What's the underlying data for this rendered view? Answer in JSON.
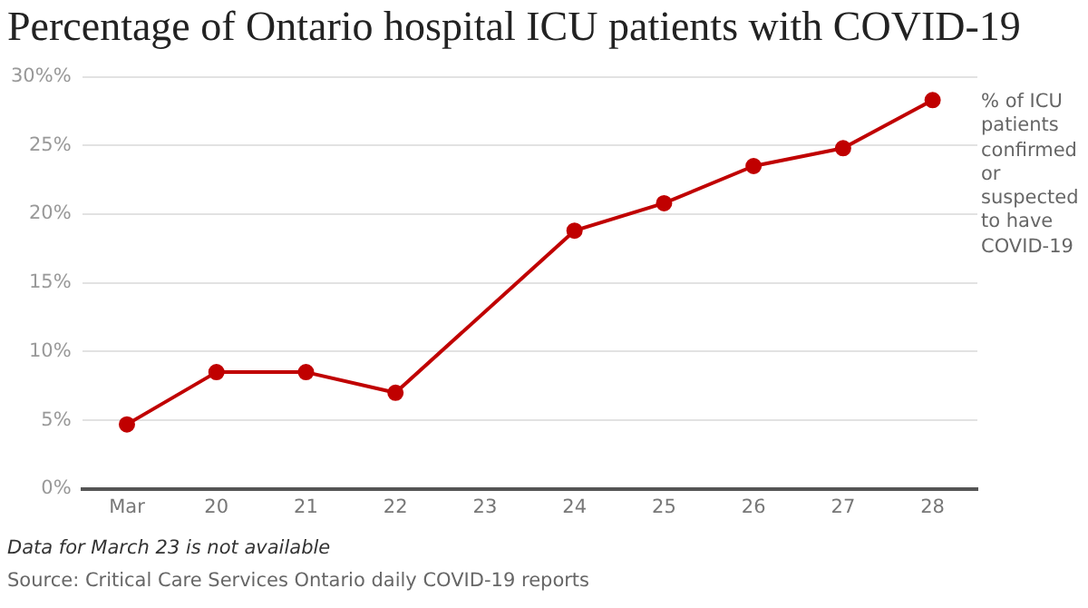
{
  "chart_data": {
    "type": "line",
    "title": "Percentage of Ontario hospital ICU patients with COVID-19",
    "categories": [
      "Mar",
      "20",
      "21",
      "22",
      "23",
      "24",
      "25",
      "26",
      "27",
      "28"
    ],
    "series": [
      {
        "name": "% of ICU patients confirmed or suspected to have COVID-19",
        "color": "#c00000",
        "values": [
          4.7,
          8.5,
          8.5,
          7.0,
          null,
          18.8,
          20.8,
          23.5,
          24.8,
          28.3
        ]
      }
    ],
    "ylim": [
      0,
      30
    ],
    "yticks": [
      {
        "value": 0,
        "label": "0%"
      },
      {
        "value": 5,
        "label": "5%"
      },
      {
        "value": 10,
        "label": "10%"
      },
      {
        "value": 15,
        "label": "15%"
      },
      {
        "value": 20,
        "label": "20%"
      },
      {
        "value": 25,
        "label": "25%"
      },
      {
        "value": 30,
        "label": "30%%"
      }
    ],
    "grid": "y",
    "legend": false,
    "marker": "circle",
    "line_style": "solid",
    "annotations": [
      "Data for March 23 is not available",
      "Source: Critical Care Services Ontario daily COVID-19 reports"
    ]
  }
}
